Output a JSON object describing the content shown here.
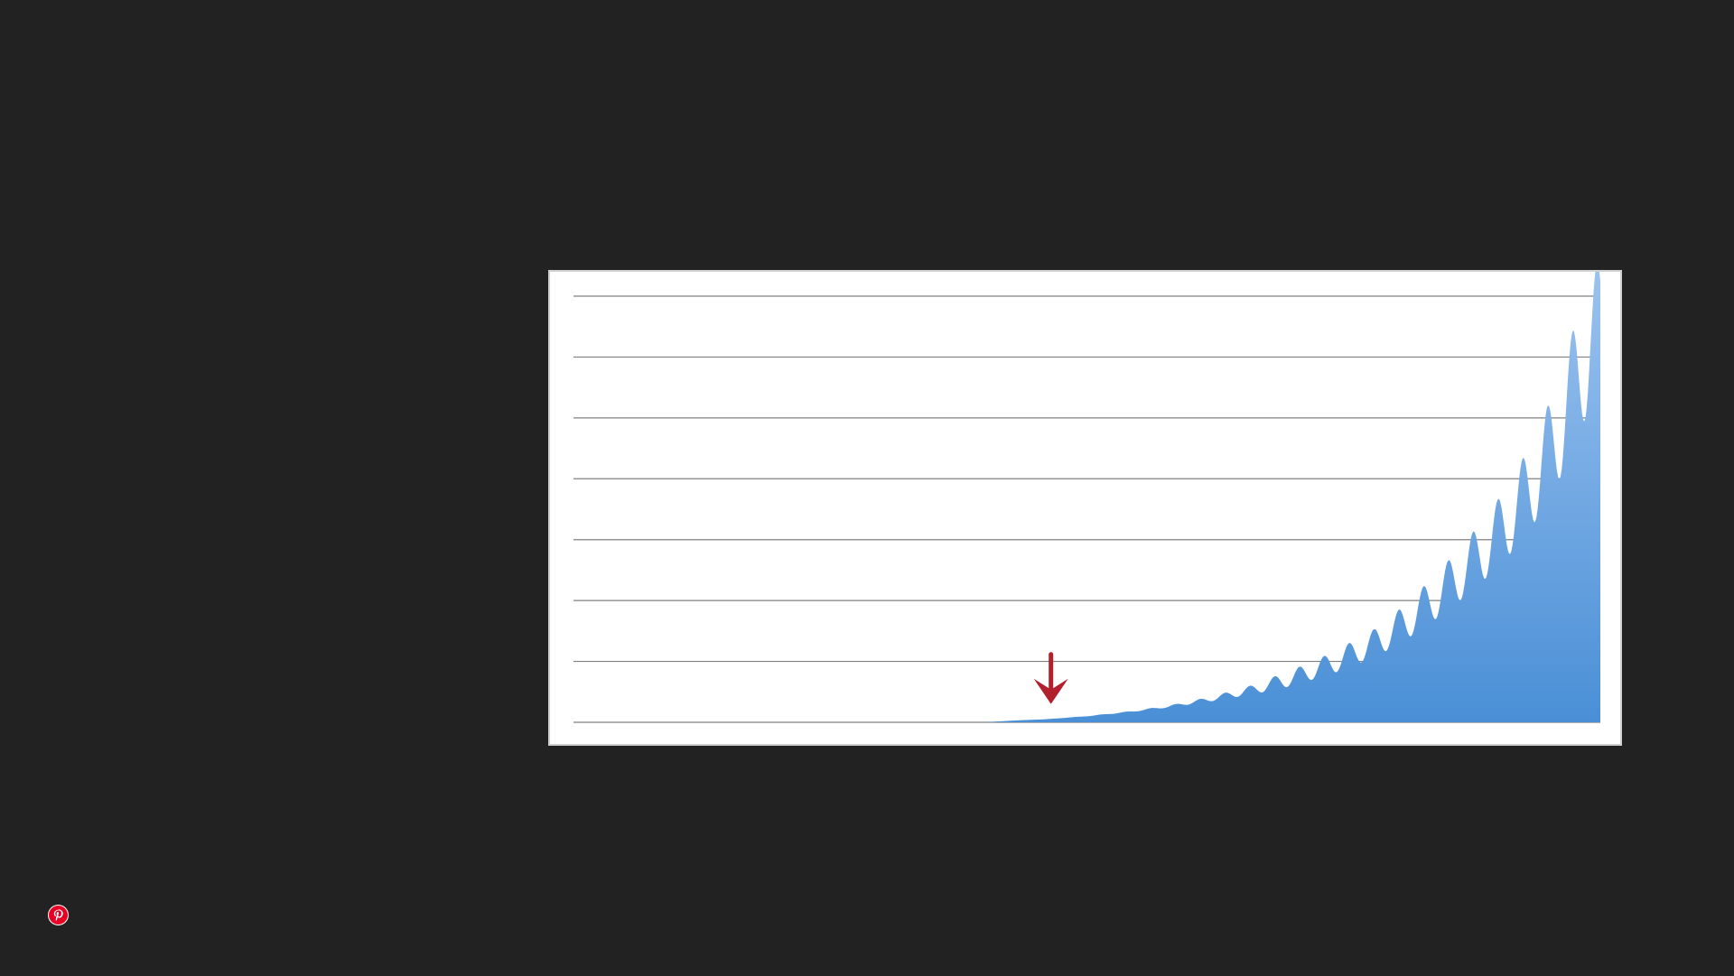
{
  "colors": {
    "background": "#222222",
    "chart_background": "#ffffff",
    "gridline": "#808080",
    "area_top": "#9cc3f0",
    "area_bottom": "#4a8fd6",
    "arrow": "#b2202e",
    "pin": "#e60023"
  },
  "icons": {
    "share": "pinterest-icon",
    "annotation": "arrow-down-icon"
  },
  "chart_data": {
    "type": "area",
    "title": "",
    "xlabel": "",
    "ylabel": "",
    "grid": true,
    "gridline_count": 8,
    "legend": "none",
    "xlim": [
      0,
      100
    ],
    "ylim": [
      0,
      7
    ],
    "series": [
      {
        "x": [
          0,
          40,
          43,
          46,
          50,
          54,
          58,
          62,
          66,
          70,
          74,
          78,
          80,
          82,
          84,
          86,
          88,
          90,
          91,
          92,
          93,
          94,
          95,
          96,
          97,
          98,
          99,
          100
        ],
        "values": [
          0,
          0,
          0.03,
          0.05,
          0.1,
          0.17,
          0.26,
          0.38,
          0.53,
          0.73,
          0.98,
          1.3,
          1.52,
          1.78,
          2.07,
          2.38,
          2.72,
          3.1,
          3.32,
          3.56,
          3.82,
          4.12,
          4.45,
          4.85,
          5.3,
          5.8,
          6.3,
          6.45
        ]
      }
    ],
    "annotations": [
      {
        "type": "arrow",
        "x": 46.5,
        "y": 0.35,
        "direction": "down"
      }
    ]
  }
}
